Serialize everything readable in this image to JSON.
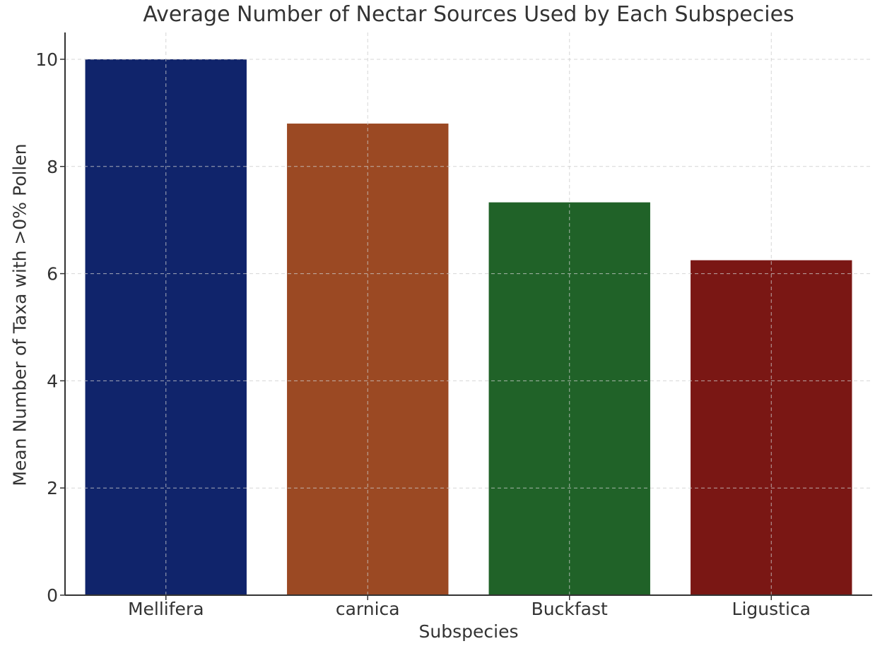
{
  "chart_data": {
    "type": "bar",
    "title": "Average Number of Nectar Sources Used by Each Subspecies",
    "xlabel": "Subspecies",
    "ylabel": "Mean Number of Taxa with >0% Pollen",
    "categories": [
      "Mellifera",
      "carnica",
      "Buckfast",
      "Ligustica"
    ],
    "values": [
      10.0,
      8.8,
      7.33,
      6.25
    ],
    "colors": [
      "#10246b",
      "#9b4923",
      "#206228",
      "#7a1714"
    ],
    "ylim": [
      0,
      10.5
    ],
    "yticks": [
      0,
      2,
      4,
      6,
      8,
      10
    ],
    "grid": true
  }
}
